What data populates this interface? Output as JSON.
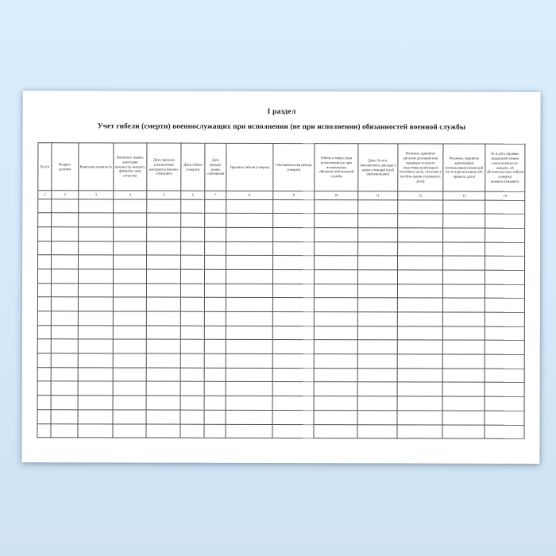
{
  "page": {
    "section_title": "I раздел",
    "table_title": "Учет гибели (смерти) военнослужащих при исполнении (не при исполнении) обязанностей военной службы"
  },
  "table": {
    "columns": [
      {
        "num": "1",
        "label": "№ п/п"
      },
      {
        "num": "2",
        "label": "Подраз-деление"
      },
      {
        "num": "3",
        "label": "Воинская должность"
      },
      {
        "num": "4",
        "label": "Воинское звание, категория военнослу-жащего, фамилия, имя, отчество"
      },
      {
        "num": "5",
        "label": "Дата призыва (заключения контракта) военно-служащего"
      },
      {
        "num": "6",
        "label": "Дата гибели (смерти)"
      },
      {
        "num": "7",
        "label": "Дата уведом-ления, сообщения"
      },
      {
        "num": "8",
        "label": "Причина гибели (смерти)"
      },
      {
        "num": "9",
        "label": "Обстоятельства гибели (смерти)"
      },
      {
        "num": "10",
        "label": "Гибель (смерть) при исполнении (не при исполнении) обязанностей военной службы"
      },
      {
        "num": "11",
        "label": "Дата, № исх. письменного доклада в выше-стоящий штаб (организацию)"
      },
      {
        "num": "12",
        "label": "Решение, принятое органом дознания или предвари-тельного следствия (возбуждено уголовное дело, отказано в возбуж-дении уголовного дела)"
      },
      {
        "num": "13",
        "label": "Решение, принятое командиром (начальником) воинской части (организации) (№ приказа, дата)"
      },
      {
        "num": "14",
        "label": "№ и дата справки, выданной членам семьи военнослу-жащего, об обстоятельствах гибели (смерти) военнослужащего"
      }
    ],
    "empty_row_count": 17,
    "cell_values": []
  },
  "colors": {
    "background_top": "#dbeefd",
    "background_bottom": "#cfe2f4",
    "paper": "#ffffff",
    "table_border": "#4f4f4f",
    "text": "#1a1a1a"
  }
}
